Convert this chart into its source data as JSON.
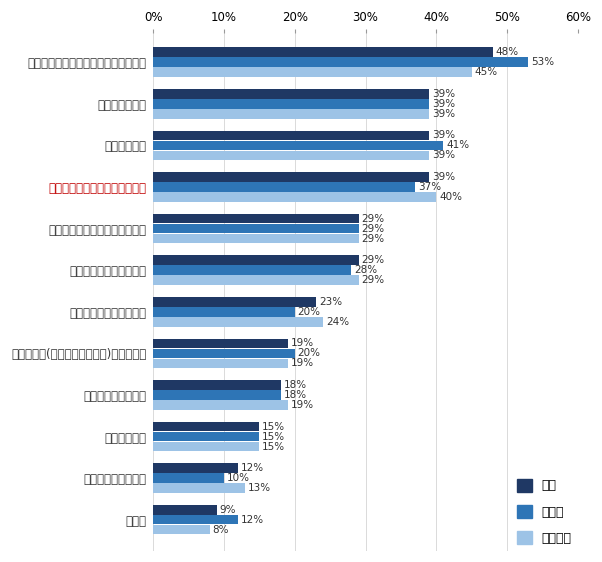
{
  "categories": [
    "業務フローを見直し、システム化する",
    "正社員を増やす",
    "給与を増やす",
    "トップや管理職が率先して帰る",
    "残業時間を評価指標に組み込む",
    "フレックス制を導入する",
    "残業禁止日の設定をする",
    "業務の外注(アウトソーシング)を実施する",
    "定時に強制消灯する",
    "罰則をつくる",
    "朝型勤務へのシフト",
    "その他"
  ],
  "series": {
    "全体": [
      48,
      39,
      39,
      39,
      29,
      29,
      23,
      19,
      18,
      15,
      12,
      9
    ],
    "製造業": [
      53,
      39,
      41,
      37,
      29,
      28,
      20,
      20,
      18,
      15,
      10,
      12
    ],
    "非製造業": [
      45,
      39,
      39,
      40,
      29,
      29,
      24,
      19,
      19,
      15,
      13,
      8
    ]
  },
  "colors": {
    "全体": "#1F3864",
    "製造業": "#2E75B6",
    "非製造業": "#9DC3E6"
  },
  "red_label": "トップや管理職が率先して帰る",
  "red_color": "#C00000",
  "default_label_color": "#333333",
  "xlim": [
    0,
    60
  ],
  "xticks": [
    0,
    10,
    20,
    30,
    40,
    50,
    60
  ],
  "bar_height": 0.23,
  "bar_gap": 0.01,
  "figsize": [
    6.02,
    5.62
  ],
  "dpi": 100
}
